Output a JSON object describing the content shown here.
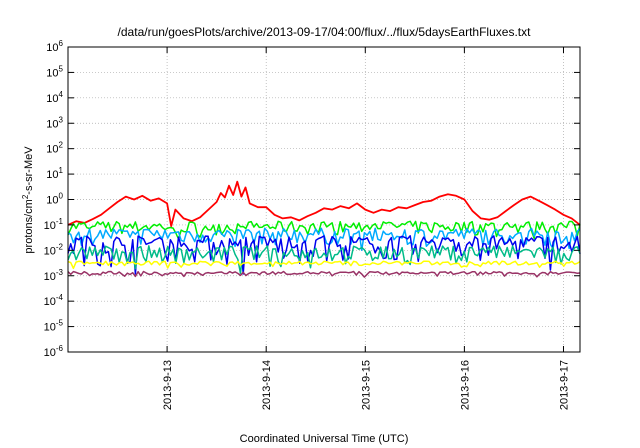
{
  "chart_data": {
    "type": "line",
    "title": "/data/run/goesPlots/archive/2013-09-17/04:00/flux/../flux/5daysEarthFluxes.txt",
    "xlabel": "Coordinated Universal Time (UTC)",
    "ylabel": {
      "prefix": "protons/cm",
      "sup": "2",
      "suffix": "-s-sr-MeV"
    },
    "yscale": "log",
    "ylim": [
      1e-06,
      1000000.0
    ],
    "y_ticks": [
      {
        "value": 1e-06,
        "base": "10",
        "exp": "-6"
      },
      {
        "value": 1e-05,
        "base": "10",
        "exp": "-5"
      },
      {
        "value": 0.0001,
        "base": "10",
        "exp": "-4"
      },
      {
        "value": 0.001,
        "base": "10",
        "exp": "-3"
      },
      {
        "value": 0.01,
        "base": "10",
        "exp": "-2"
      },
      {
        "value": 0.1,
        "base": "10",
        "exp": "-1"
      },
      {
        "value": 1,
        "base": "10",
        "exp": "0"
      },
      {
        "value": 10,
        "base": "10",
        "exp": "1"
      },
      {
        "value": 100,
        "base": "10",
        "exp": "2"
      },
      {
        "value": 1000,
        "base": "10",
        "exp": "3"
      },
      {
        "value": 10000,
        "base": "10",
        "exp": "4"
      },
      {
        "value": 100000,
        "base": "10",
        "exp": "5"
      },
      {
        "value": 1000000,
        "base": "10",
        "exp": "6"
      }
    ],
    "xlim": [
      "2013-09-12",
      "2013-09-17 04:00"
    ],
    "x_ticks": [
      {
        "value": "2013-09-13",
        "label": "2013-9-13"
      },
      {
        "value": "2013-09-14",
        "label": "2013-9-14"
      },
      {
        "value": "2013-09-15",
        "label": "2013-9-15"
      },
      {
        "value": "2013-09-16",
        "label": "2013-9-16"
      },
      {
        "value": "2013-09-17",
        "label": "2013-9-17"
      }
    ],
    "grid": true,
    "legend": "none",
    "series": [
      {
        "color": "#ff0000",
        "points": [
          [
            "2013-09-12 00:00",
            0.1
          ],
          [
            "2013-09-12 02:00",
            0.14
          ],
          [
            "2013-09-12 04:00",
            0.12
          ],
          [
            "2013-09-12 06:00",
            0.17
          ],
          [
            "2013-09-12 08:00",
            0.25
          ],
          [
            "2013-09-12 10:00",
            0.45
          ],
          [
            "2013-09-12 12:00",
            0.8
          ],
          [
            "2013-09-12 14:00",
            1.3
          ],
          [
            "2013-09-12 16:00",
            1.0
          ],
          [
            "2013-09-12 18:00",
            1.4
          ],
          [
            "2013-09-12 20:00",
            0.9
          ],
          [
            "2013-09-12 22:00",
            1.1
          ],
          [
            "2013-09-13 00:00",
            0.7
          ],
          [
            "2013-09-13 01:00",
            0.09
          ],
          [
            "2013-09-13 02:00",
            0.4
          ],
          [
            "2013-09-13 04:00",
            0.18
          ],
          [
            "2013-09-13 06:00",
            0.14
          ],
          [
            "2013-09-13 08:00",
            0.2
          ],
          [
            "2013-09-13 10:00",
            0.4
          ],
          [
            "2013-09-13 12:00",
            0.8
          ],
          [
            "2013-09-13 13:00",
            1.8
          ],
          [
            "2013-09-13 14:00",
            1.2
          ],
          [
            "2013-09-13 15:00",
            3.5
          ],
          [
            "2013-09-13 16:00",
            1.5
          ],
          [
            "2013-09-13 17:00",
            5.0
          ],
          [
            "2013-09-13 18:00",
            1.3
          ],
          [
            "2013-09-13 19:00",
            3.0
          ],
          [
            "2013-09-13 20:00",
            0.7
          ],
          [
            "2013-09-13 22:00",
            0.5
          ],
          [
            "2013-09-14 00:00",
            0.5
          ],
          [
            "2013-09-14 02:00",
            0.25
          ],
          [
            "2013-09-14 04:00",
            0.18
          ],
          [
            "2013-09-14 06:00",
            0.2
          ],
          [
            "2013-09-14 08:00",
            0.15
          ],
          [
            "2013-09-14 10:00",
            0.22
          ],
          [
            "2013-09-14 12:00",
            0.3
          ],
          [
            "2013-09-14 14:00",
            0.45
          ],
          [
            "2013-09-14 16:00",
            0.4
          ],
          [
            "2013-09-14 18:00",
            0.55
          ],
          [
            "2013-09-14 20:00",
            0.45
          ],
          [
            "2013-09-14 22:00",
            0.7
          ],
          [
            "2013-09-15 00:00",
            0.4
          ],
          [
            "2013-09-15 02:00",
            0.3
          ],
          [
            "2013-09-15 04:00",
            0.4
          ],
          [
            "2013-09-15 06:00",
            0.35
          ],
          [
            "2013-09-15 08:00",
            0.5
          ],
          [
            "2013-09-15 10:00",
            0.45
          ],
          [
            "2013-09-15 12:00",
            0.6
          ],
          [
            "2013-09-15 14:00",
            0.8
          ],
          [
            "2013-09-15 16:00",
            0.9
          ],
          [
            "2013-09-15 18:00",
            1.3
          ],
          [
            "2013-09-15 20:00",
            1.6
          ],
          [
            "2013-09-15 22:00",
            1.4
          ],
          [
            "2013-09-16 00:00",
            1.0
          ],
          [
            "2013-09-16 02:00",
            0.35
          ],
          [
            "2013-09-16 04:00",
            0.18
          ],
          [
            "2013-09-16 06:00",
            0.16
          ],
          [
            "2013-09-16 08:00",
            0.2
          ],
          [
            "2013-09-16 10:00",
            0.35
          ],
          [
            "2013-09-16 12:00",
            0.6
          ],
          [
            "2013-09-16 14:00",
            1.0
          ],
          [
            "2013-09-16 16:00",
            1.3
          ],
          [
            "2013-09-16 18:00",
            0.9
          ],
          [
            "2013-09-16 20:00",
            0.6
          ],
          [
            "2013-09-16 22:00",
            0.4
          ],
          [
            "2013-09-17 00:00",
            0.25
          ],
          [
            "2013-09-17 02:00",
            0.18
          ],
          [
            "2013-09-17 04:00",
            0.1
          ]
        ]
      },
      {
        "color": "#00ee00",
        "base": 0.09,
        "jitter": 0.25,
        "dips": 0.5
      },
      {
        "color": "#00aaff",
        "base": 0.045,
        "jitter": 0.3,
        "dips": 0.6
      },
      {
        "color": "#0000ee",
        "base": 0.02,
        "jitter": 0.4,
        "dips": 0.8
      },
      {
        "color": "#00bb88",
        "base": 0.009,
        "jitter": 0.3,
        "dips": 0.7
      },
      {
        "color": "#ffff00",
        "base": 0.0032,
        "jitter": 0.08,
        "dips": 0.3
      },
      {
        "color": "#993366",
        "base": 0.0013,
        "jitter": 0.06,
        "dips": 0.25
      }
    ]
  }
}
